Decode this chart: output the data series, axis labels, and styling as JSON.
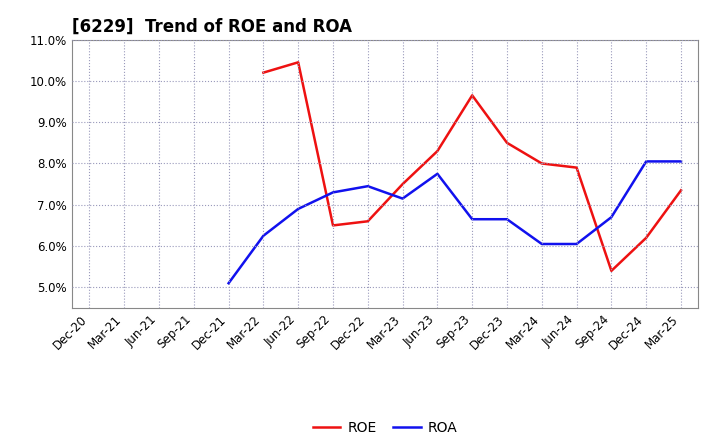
{
  "title": "[6229]  Trend of ROE and ROA",
  "x_labels": [
    "Dec-20",
    "Mar-21",
    "Jun-21",
    "Sep-21",
    "Dec-21",
    "Mar-22",
    "Jun-22",
    "Sep-22",
    "Dec-22",
    "Mar-23",
    "Jun-23",
    "Sep-23",
    "Dec-23",
    "Mar-24",
    "Jun-24",
    "Sep-24",
    "Dec-24",
    "Mar-25"
  ],
  "roe_x_idx": [
    5,
    6,
    7,
    8,
    9,
    10,
    11,
    12,
    13,
    14,
    15,
    16,
    17
  ],
  "roe_y": [
    10.2,
    10.45,
    6.5,
    6.6,
    7.5,
    8.3,
    9.65,
    8.5,
    8.0,
    7.9,
    5.4,
    6.2,
    7.35
  ],
  "roa_x_idx": [
    4,
    5,
    6,
    7,
    8,
    9,
    10,
    11,
    12,
    13,
    14,
    15,
    16,
    17
  ],
  "roa_y": [
    5.1,
    6.25,
    6.9,
    7.3,
    7.45,
    7.15,
    7.75,
    6.65,
    6.65,
    6.05,
    6.05,
    6.7,
    8.05,
    8.05
  ],
  "ylim": [
    4.5,
    11.0
  ],
  "yticks": [
    5.0,
    6.0,
    7.0,
    8.0,
    9.0,
    10.0,
    11.0
  ],
  "roe_color": "#ee1111",
  "roa_color": "#1111ee",
  "background_color": "#ffffff",
  "grid_color": "#9999bb",
  "linewidth": 1.8,
  "title_fontsize": 12,
  "tick_fontsize": 8.5,
  "legend_fontsize": 10
}
